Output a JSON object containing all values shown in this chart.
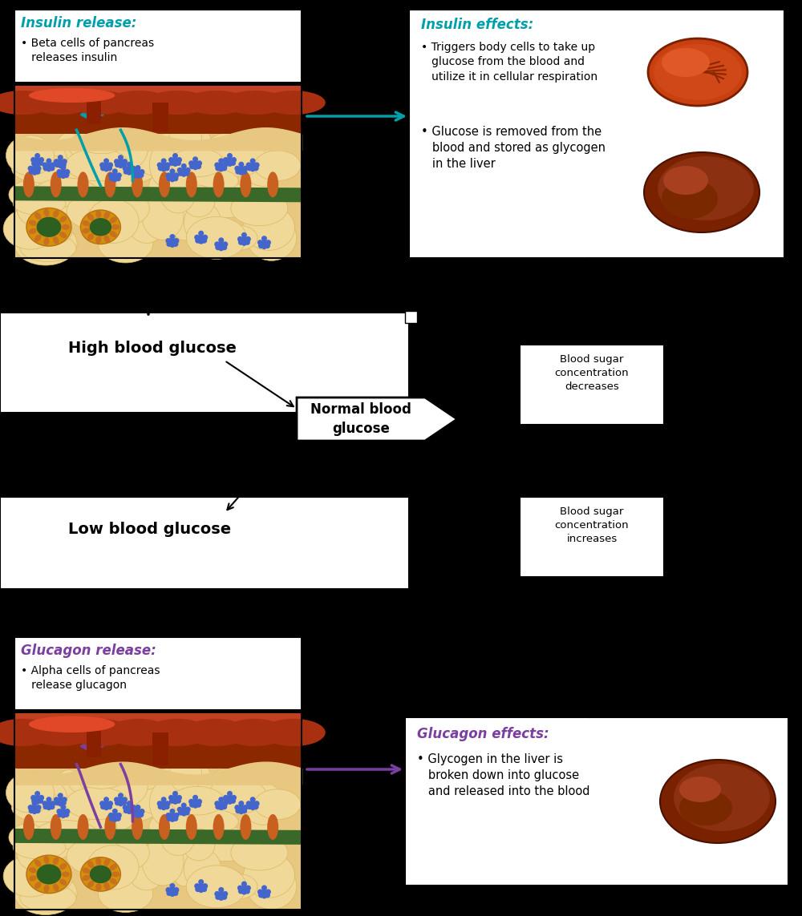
{
  "bg_color": "#000000",
  "white": "#ffffff",
  "teal": "#009faa",
  "purple": "#7b3fa0",
  "black": "#000000",
  "blood_red": "#9b2a0a",
  "blood_red2": "#c04020",
  "tan": "#e8c87a",
  "tan2": "#f0d898",
  "green_tissue": "#4a7a30",
  "orange_tissue": "#c86020",
  "yellow_tissue": "#d4a820",
  "blue_cell": "#4466cc",
  "liver_dark": "#6b1c00",
  "liver_mid": "#8b2c10",
  "liver_light": "#a84020",
  "insulin_release_title": "Insulin release:",
  "insulin_release_bullet": "• Beta cells of pancreas\n   releases insulin",
  "insulin_effects_title": "Insulin effects:",
  "insulin_effects_b1": "• Triggers body cells to take up\n   glucose from the blood and\n   utilize it in cellular respiration",
  "insulin_effects_b2": "• Glucose is removed from the\n   blood and stored as glycogen\n   in the liver",
  "blood_dec": "Blood sugar\nconcentration\ndecreases",
  "blood_inc": "Blood sugar\nconcentration\nincreases",
  "high_label": "High blood glucose",
  "normal_label": "Normal blood\nglucose",
  "low_label": "Low blood glucose",
  "glucagon_release_title": "Glucagon release:",
  "glucagon_release_bullet": "• Alpha cells of pancreas\n   release glucagon",
  "glucagon_effects_title": "Glucagon effects:",
  "glucagon_effects_bullet": "• Glycogen in the liver is\n   broken down into glucose\n   and released into the blood"
}
